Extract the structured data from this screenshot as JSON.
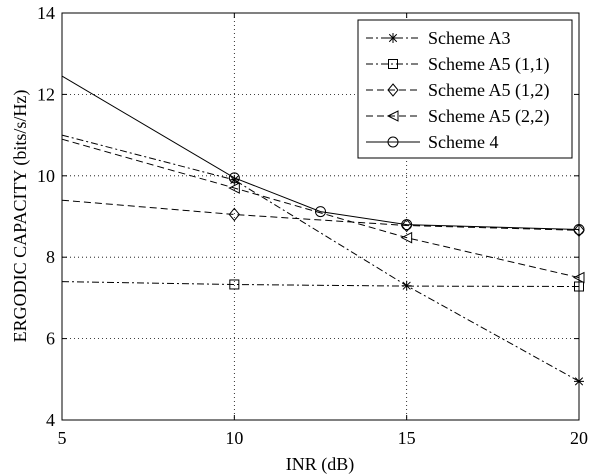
{
  "chart_data": {
    "type": "line",
    "xlabel": "INR (dB)",
    "ylabel": "ERGODIC CAPACITY (bits/s/Hz)",
    "xlim": [
      5,
      20
    ],
    "ylim": [
      4,
      14
    ],
    "xticks": [
      5,
      10,
      15,
      20
    ],
    "yticks": [
      4,
      6,
      8,
      10,
      12,
      14
    ],
    "xtick_labels": [
      "5",
      "10",
      "15",
      "20"
    ],
    "ytick_labels": [
      "4",
      "6",
      "8",
      "10",
      "12",
      "14"
    ],
    "grid": true,
    "legend_position": "top-right",
    "series": [
      {
        "name": "Scheme A3",
        "marker": "asterisk",
        "dash": "dashdot",
        "x": [
          5,
          10,
          15,
          20
        ],
        "y": [
          11.0,
          9.9,
          7.3,
          4.95
        ],
        "marker_x": [
          10,
          15,
          20
        ],
        "marker_y": [
          9.9,
          7.3,
          4.95
        ]
      },
      {
        "name": "Scheme A5 (1,1)",
        "marker": "square",
        "dash": "dashdot",
        "x": [
          5,
          10,
          15,
          20
        ],
        "y": [
          7.4,
          7.33,
          7.29,
          7.28
        ],
        "marker_x": [
          10,
          20
        ],
        "marker_y": [
          7.33,
          7.28
        ]
      },
      {
        "name": "Scheme A5 (1,2)",
        "marker": "diamond",
        "dash": "dashed",
        "x": [
          5,
          10,
          15,
          20
        ],
        "y": [
          9.4,
          9.05,
          8.78,
          8.66
        ],
        "marker_x": [
          10,
          15,
          20
        ],
        "marker_y": [
          9.05,
          8.78,
          8.66
        ]
      },
      {
        "name": "Scheme A5 (2,2)",
        "marker": "triangle-left",
        "dash": "dashed",
        "x": [
          5,
          10,
          15,
          20
        ],
        "y": [
          10.9,
          9.7,
          8.48,
          7.5
        ],
        "marker_x": [
          10,
          15,
          20
        ],
        "marker_y": [
          9.7,
          8.48,
          7.5
        ]
      },
      {
        "name": "Scheme 4",
        "marker": "circle",
        "dash": "solid",
        "x": [
          5,
          10,
          12.5,
          15,
          20
        ],
        "y": [
          12.45,
          9.95,
          9.12,
          8.8,
          8.68
        ],
        "marker_x": [
          10,
          12.5,
          15,
          20
        ],
        "marker_y": [
          9.95,
          9.12,
          8.8,
          8.68
        ]
      }
    ]
  }
}
